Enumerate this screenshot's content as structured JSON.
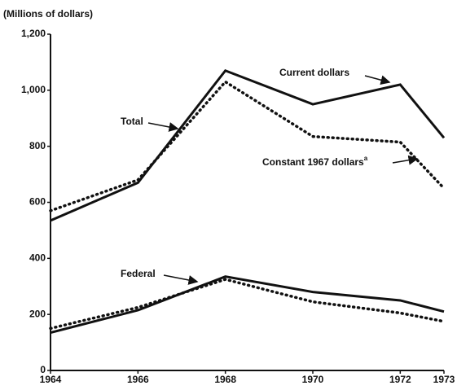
{
  "chart_data": {
    "type": "line",
    "ylabel": "(Millions of dollars)",
    "x": [
      1964,
      1966,
      1968,
      1970,
      1972,
      1973
    ],
    "xlim": [
      1964,
      1973
    ],
    "xticks": [
      1964,
      1966,
      1968,
      1970,
      1972,
      1973
    ],
    "ylim": [
      0,
      1200
    ],
    "yticks": [
      0,
      200,
      400,
      600,
      800,
      {
        "value": 1000,
        "label": "1,000"
      },
      {
        "value": 1200,
        "label": "1,200"
      }
    ],
    "series": [
      {
        "color": "#111111",
        "dashed": false,
        "values": [
          535,
          670,
          1070,
          950,
          1020,
          830
        ]
      },
      {
        "color": "#111111",
        "dashed": true,
        "values": [
          570,
          680,
          1030,
          835,
          815,
          650
        ]
      },
      {
        "color": "#111111",
        "dashed": false,
        "values": [
          135,
          215,
          335,
          280,
          250,
          210
        ]
      },
      {
        "color": "#111111",
        "dashed": true,
        "values": [
          150,
          225,
          325,
          245,
          205,
          175
        ]
      }
    ],
    "annotations": [
      {
        "text": "Current dollars"
      },
      {
        "text": "Constant 1967 dollars",
        "footnote": "a"
      },
      {
        "text": "Total"
      },
      {
        "text": "Federal"
      }
    ]
  }
}
